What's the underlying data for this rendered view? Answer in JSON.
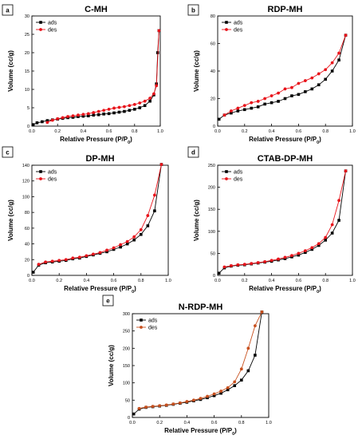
{
  "figure": {
    "colors": {
      "ads": "#000000",
      "des": "#e8141b",
      "des_e": "#c8501e",
      "axis": "#000000"
    },
    "chart_data": [
      {
        "panel": "a",
        "type": "scatter",
        "title": "C-MH",
        "xlabel": "Relative Pressure (P/P",
        "xlabel_sub": "0",
        "xlabel_end": ")",
        "ylabel": "Volume (cc/g)",
        "xlim": [
          0.0,
          1.0
        ],
        "ylim": [
          0,
          30
        ],
        "xticks": [
          0.0,
          0.2,
          0.4,
          0.6,
          0.8,
          1.0
        ],
        "xticklabels": [
          "0.0",
          "0.2",
          "0.4",
          "0.6",
          "0.8",
          "1.0"
        ],
        "yticks": [
          0,
          5,
          10,
          15,
          20,
          25,
          30
        ],
        "yticklabels": [
          "0",
          "5",
          "10",
          "15",
          "20",
          "25",
          "30"
        ],
        "legend_position": "top-left",
        "series": [
          {
            "name": "ads",
            "color_key": "ads",
            "x": [
              0.01,
              0.04,
              0.08,
              0.12,
              0.16,
              0.2,
              0.24,
              0.28,
              0.32,
              0.36,
              0.4,
              0.44,
              0.48,
              0.52,
              0.56,
              0.6,
              0.64,
              0.68,
              0.72,
              0.76,
              0.8,
              0.84,
              0.88,
              0.92,
              0.95,
              0.97,
              0.98,
              0.99
            ],
            "y": [
              0.4,
              0.9,
              1.2,
              1.5,
              1.7,
              1.9,
              2.1,
              2.3,
              2.4,
              2.6,
              2.7,
              2.8,
              3.0,
              3.1,
              3.3,
              3.4,
              3.6,
              3.8,
              4.0,
              4.3,
              4.6,
              5.0,
              5.6,
              6.8,
              8.5,
              11.5,
              20.0,
              26.0
            ]
          },
          {
            "name": "des",
            "color_key": "des",
            "x": [
              0.99,
              0.97,
              0.95,
              0.92,
              0.88,
              0.84,
              0.8,
              0.76,
              0.72,
              0.68,
              0.64,
              0.6,
              0.56,
              0.52,
              0.48,
              0.44,
              0.4,
              0.36,
              0.32,
              0.28,
              0.24,
              0.2,
              0.16,
              0.12
            ],
            "y": [
              26.0,
              11.0,
              8.8,
              7.6,
              6.8,
              6.3,
              5.9,
              5.6,
              5.3,
              5.1,
              4.9,
              4.6,
              4.3,
              4.0,
              3.7,
              3.4,
              3.2,
              3.0,
              2.8,
              2.6,
              2.3,
              2.0,
              1.6,
              1.0
            ]
          }
        ]
      },
      {
        "panel": "b",
        "type": "scatter",
        "title": "RDP-MH",
        "xlabel": "Relative Pressure (P/P",
        "xlabel_sub": "0",
        "xlabel_end": ")",
        "ylabel": "Volume (cc/g)",
        "xlim": [
          0.0,
          1.0
        ],
        "ylim": [
          0,
          80
        ],
        "xticks": [
          0.0,
          0.2,
          0.4,
          0.6,
          0.8,
          1.0
        ],
        "xticklabels": [
          "0.0",
          "0.2",
          "0.4",
          "0.6",
          "0.8",
          "1.0"
        ],
        "yticks": [
          0,
          20,
          40,
          60,
          80
        ],
        "yticklabels": [
          "0",
          "20",
          "40",
          "60",
          "80"
        ],
        "legend_position": "top-left",
        "series": [
          {
            "name": "ads",
            "color_key": "ads",
            "x": [
              0.01,
              0.05,
              0.1,
              0.15,
              0.2,
              0.25,
              0.3,
              0.35,
              0.4,
              0.45,
              0.5,
              0.55,
              0.6,
              0.65,
              0.7,
              0.75,
              0.8,
              0.85,
              0.9,
              0.95
            ],
            "y": [
              5,
              8,
              9.5,
              11,
              12,
              13,
              14,
              16,
              17,
              18,
              20,
              22,
              23,
              25,
              27,
              30,
              34,
              40,
              48,
              66
            ]
          },
          {
            "name": "des",
            "color_key": "des",
            "x": [
              0.95,
              0.9,
              0.85,
              0.8,
              0.75,
              0.7,
              0.65,
              0.6,
              0.55,
              0.5,
              0.45,
              0.4,
              0.35,
              0.3,
              0.25,
              0.2,
              0.15,
              0.1,
              0.05
            ],
            "y": [
              66,
              53,
              46,
              41,
              38,
              35,
              33,
              31,
              28,
              27,
              24,
              22,
              20,
              18,
              17,
              15,
              13,
              11,
              8
            ]
          }
        ]
      },
      {
        "panel": "c",
        "type": "scatter",
        "title": "DP-MH",
        "xlabel": "Relative Pressure (P/P",
        "xlabel_sub": "0",
        "xlabel_end": ")",
        "ylabel": "Volume (cc/g)",
        "xlim": [
          0.0,
          1.0
        ],
        "ylim": [
          0,
          140
        ],
        "xticks": [
          0.0,
          0.2,
          0.4,
          0.6,
          0.8,
          1.0
        ],
        "xticklabels": [
          "0.0",
          "0.2",
          "0.4",
          "0.6",
          "0.8",
          "1.0"
        ],
        "yticks": [
          0,
          20,
          40,
          60,
          80,
          100,
          120,
          140
        ],
        "yticklabels": [
          "0",
          "20",
          "40",
          "60",
          "80",
          "100",
          "120",
          "140"
        ],
        "legend_position": "top-left",
        "series": [
          {
            "name": "ads",
            "color_key": "ads",
            "x": [
              0.01,
              0.05,
              0.1,
              0.15,
              0.2,
              0.25,
              0.3,
              0.35,
              0.4,
              0.45,
              0.5,
              0.55,
              0.6,
              0.65,
              0.7,
              0.75,
              0.8,
              0.85,
              0.9,
              0.95
            ],
            "y": [
              4,
              13,
              16,
              17,
              18,
              19,
              21,
              22,
              24,
              26,
              28,
              30,
              33,
              36,
              40,
              45,
              52,
              63,
              82,
              141
            ]
          },
          {
            "name": "des",
            "color_key": "des",
            "x": [
              0.95,
              0.9,
              0.85,
              0.8,
              0.75,
              0.7,
              0.65,
              0.6,
              0.55,
              0.5,
              0.45,
              0.4,
              0.35,
              0.3,
              0.25,
              0.2,
              0.15,
              0.1,
              0.05
            ],
            "y": [
              141,
              102,
              76,
              58,
              49,
              43,
              39,
              35,
              32,
              29,
              27,
              25,
              23,
              22,
              20,
              19,
              18,
              17,
              14
            ]
          }
        ]
      },
      {
        "panel": "d",
        "type": "scatter",
        "title": "CTAB-DP-MH",
        "xlabel": "Relative Pressure (P/P",
        "xlabel_sub": "0",
        "xlabel_end": ")",
        "ylabel": "Volume (cc/g)",
        "xlim": [
          0.0,
          1.0
        ],
        "ylim": [
          0,
          250
        ],
        "xticks": [
          0.0,
          0.2,
          0.4,
          0.6,
          0.8,
          1.0
        ],
        "xticklabels": [
          "0.0",
          "0.2",
          "0.4",
          "0.6",
          "0.8",
          "1.0"
        ],
        "yticks": [
          0,
          50,
          100,
          150,
          200,
          250
        ],
        "yticklabels": [
          "0",
          "50",
          "100",
          "150",
          "200",
          "250"
        ],
        "legend_position": "top-left",
        "series": [
          {
            "name": "ads",
            "color_key": "ads",
            "x": [
              0.01,
              0.05,
              0.1,
              0.15,
              0.2,
              0.25,
              0.3,
              0.35,
              0.4,
              0.45,
              0.5,
              0.55,
              0.6,
              0.65,
              0.7,
              0.75,
              0.8,
              0.85,
              0.9,
              0.95
            ],
            "y": [
              5,
              17,
              21,
              23,
              24,
              26,
              28,
              30,
              32,
              35,
              38,
              42,
              46,
              52,
              59,
              68,
              80,
              96,
              125,
              237
            ]
          },
          {
            "name": "des",
            "color_key": "des",
            "x": [
              0.95,
              0.9,
              0.85,
              0.8,
              0.75,
              0.7,
              0.65,
              0.6,
              0.55,
              0.5,
              0.45,
              0.4,
              0.35,
              0.3,
              0.25,
              0.2,
              0.15,
              0.1,
              0.05
            ],
            "y": [
              237,
              170,
              115,
              86,
              72,
              63,
              56,
              50,
              45,
              41,
              37,
              34,
              31,
              29,
              27,
              25,
              24,
              22,
              19
            ]
          }
        ]
      },
      {
        "panel": "e",
        "type": "scatter",
        "title": "N-RDP-MH",
        "xlabel": "Relative Pressure (P/P",
        "xlabel_sub": "0",
        "xlabel_end": ")",
        "ylabel": "Volume (cc/g)",
        "xlim": [
          0.0,
          1.0
        ],
        "ylim": [
          0,
          300
        ],
        "xticks": [
          0.0,
          0.2,
          0.4,
          0.6,
          0.8,
          1.0
        ],
        "xticklabels": [
          "0.0",
          "0.2",
          "0.4",
          "0.6",
          "0.8",
          "1.0"
        ],
        "yticks": [
          0,
          50,
          100,
          150,
          200,
          250,
          300
        ],
        "yticklabels": [
          "0",
          "50",
          "100",
          "150",
          "200",
          "250",
          "300"
        ],
        "legend_position": "top-left",
        "series": [
          {
            "name": "ads",
            "color_key": "ads",
            "x": [
              0.01,
              0.05,
              0.1,
              0.15,
              0.2,
              0.25,
              0.3,
              0.35,
              0.4,
              0.45,
              0.5,
              0.55,
              0.6,
              0.65,
              0.7,
              0.75,
              0.8,
              0.85,
              0.9,
              0.95
            ],
            "y": [
              10,
              24,
              29,
              31,
              33,
              35,
              38,
              41,
              44,
              48,
              52,
              57,
              63,
              70,
              80,
              92,
              108,
              135,
              180,
              305
            ]
          },
          {
            "name": "des",
            "color_key": "des_e",
            "x": [
              0.95,
              0.9,
              0.85,
              0.8,
              0.75,
              0.7,
              0.65,
              0.6,
              0.55,
              0.5,
              0.45,
              0.4,
              0.35,
              0.3,
              0.25,
              0.2,
              0.15,
              0.1,
              0.05
            ],
            "y": [
              305,
              265,
              200,
              140,
              103,
              86,
              76,
              68,
              61,
              55,
              50,
              46,
              42,
              39,
              36,
              34,
              32,
              30,
              26
            ]
          }
        ]
      }
    ]
  }
}
